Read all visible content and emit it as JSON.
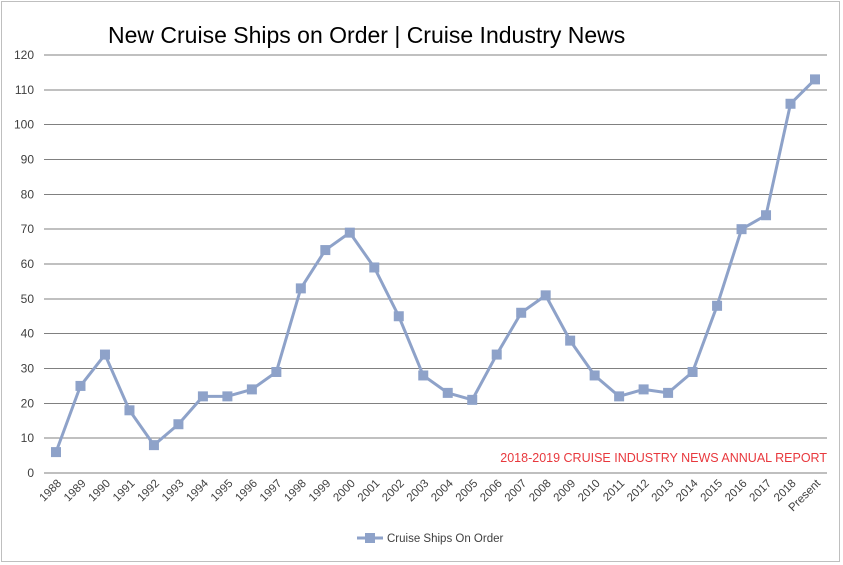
{
  "chart_data": {
    "type": "line",
    "title": "New Cruise Ships on Order | Cruise Industry News",
    "annotation": "2018-2019 CRUISE INDUSTRY NEWS ANNUAL REPORT",
    "categories": [
      "1988",
      "1989",
      "1990",
      "1991",
      "1992",
      "1993",
      "1994",
      "1995",
      "1996",
      "1997",
      "1998",
      "1999",
      "2000",
      "2001",
      "2002",
      "2003",
      "2004",
      "2005",
      "2006",
      "2007",
      "2008",
      "2009",
      "2010",
      "2011",
      "2012",
      "2013",
      "2014",
      "2015",
      "2016",
      "2017",
      "2018",
      "Present"
    ],
    "series": [
      {
        "name": "Cruise Ships On Order",
        "values": [
          6,
          25,
          34,
          18,
          8,
          14,
          22,
          22,
          24,
          29,
          53,
          64,
          69,
          59,
          45,
          28,
          23,
          21,
          34,
          46,
          51,
          38,
          28,
          22,
          24,
          23,
          29,
          48,
          70,
          74,
          106,
          113
        ]
      }
    ],
    "y_ticks": [
      "0",
      "10",
      "20",
      "30",
      "40",
      "50",
      "60",
      "70",
      "80",
      "90",
      "100",
      "110",
      "120"
    ],
    "ylim": [
      0,
      120
    ],
    "grid": true,
    "legend_position": "bottom",
    "colors": {
      "series": "#8ea2c9",
      "grid": "#808080",
      "annotation": "#e8383d"
    }
  }
}
